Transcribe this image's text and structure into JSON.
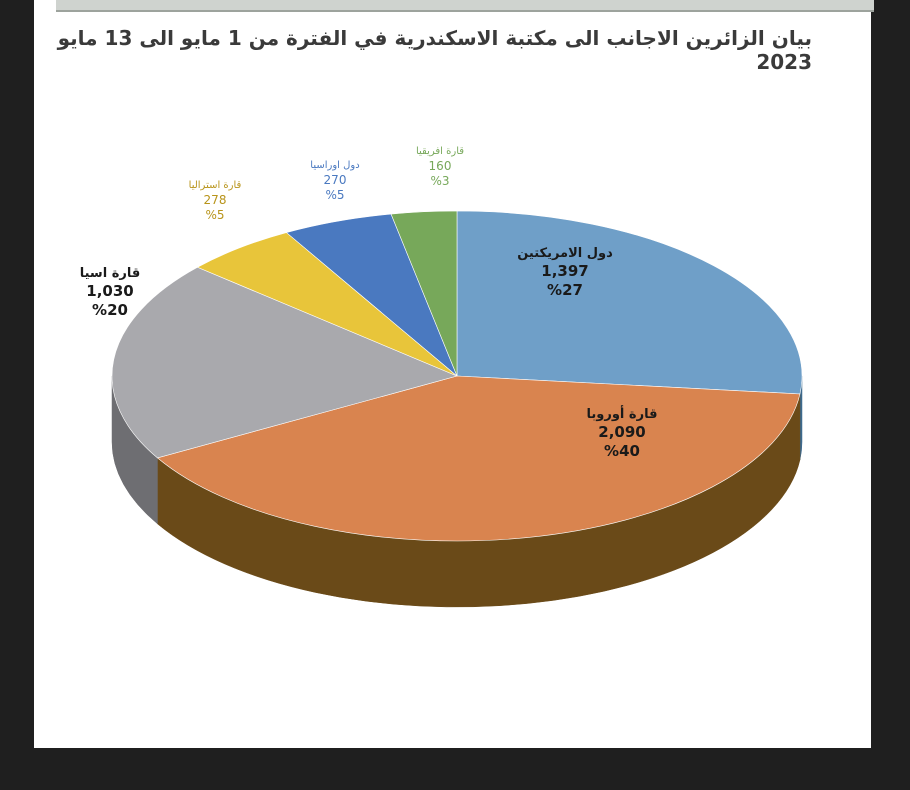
{
  "chart_data": {
    "type": "pie",
    "title": "بيان الزائرين الاجانب الى مكتبة الاسكندرية في الفترة من 1 مايو الى 13 مايو 2023",
    "slices": [
      {
        "label": "دول الامريكتين",
        "value": 1397,
        "value_text": "1,397",
        "percent_text": "%27",
        "color": "#6f9fc8",
        "side": "#3f6a8e",
        "label_color": "#1a1a1a"
      },
      {
        "label": "قارة أوروبا",
        "value": 2090,
        "value_text": "2,090",
        "percent_text": "%40",
        "color": "#d9844f",
        "side": "#6a4a18",
        "label_color": "#1a1a1a"
      },
      {
        "label": "قارة اسيا",
        "value": 1030,
        "value_text": "1,030",
        "percent_text": "%20",
        "color": "#a9a9ad",
        "side": "#6e6e72",
        "label_color": "#1a1a1a"
      },
      {
        "label": "قارة استراليا",
        "value": 278,
        "value_text": "278",
        "percent_text": "%5",
        "color": "#e8c53a",
        "side": "#9b7f1c",
        "label_color": "#b8941a"
      },
      {
        "label": "دول اوراسيا",
        "value": 270,
        "value_text": "270",
        "percent_text": "%5",
        "color": "#4a79c0",
        "side": "#2c4f86",
        "label_color": "#4a79c0"
      },
      {
        "label": "قارة افريقيا",
        "value": 160,
        "value_text": "160",
        "percent_text": "%3",
        "color": "#77a85a",
        "side": "#4a7434",
        "label_color": "#77a85a"
      }
    ]
  }
}
